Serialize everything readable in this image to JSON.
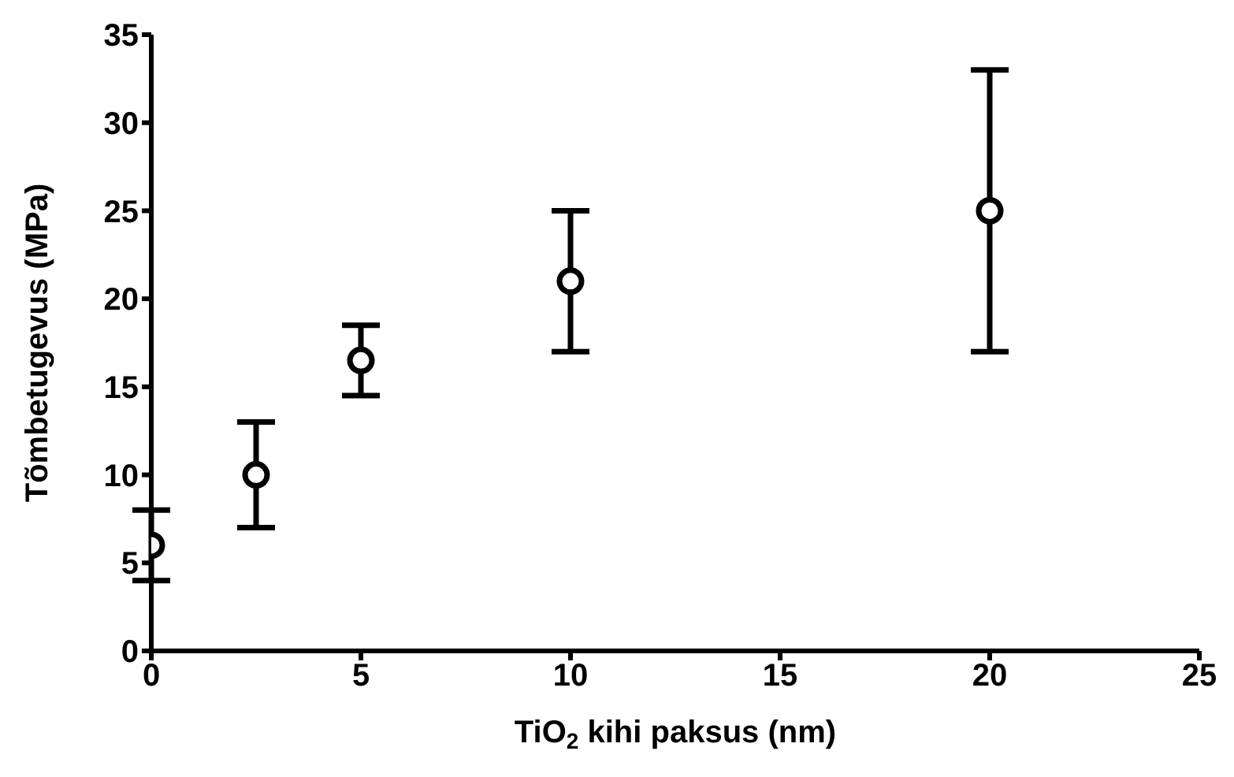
{
  "chart_data": {
    "type": "scatter",
    "xlabel": "TiO$_{2}$ kihi paksus (nm)",
    "ylabel": "Tõmbetugevus (MPa)",
    "x": [
      0,
      2.5,
      5,
      10,
      20
    ],
    "values": [
      6,
      10,
      16.5,
      21,
      25
    ],
    "errors": [
      2,
      3,
      2,
      4,
      8
    ],
    "color": "#000000",
    "marker": "circle",
    "xlim": [
      0,
      25
    ],
    "xticks": [
      0,
      5,
      10,
      15,
      20,
      25
    ],
    "ylim": [
      0,
      35
    ],
    "yticks": [
      0,
      5,
      10,
      15,
      20,
      25,
      30,
      35
    ],
    "grid": false
  }
}
